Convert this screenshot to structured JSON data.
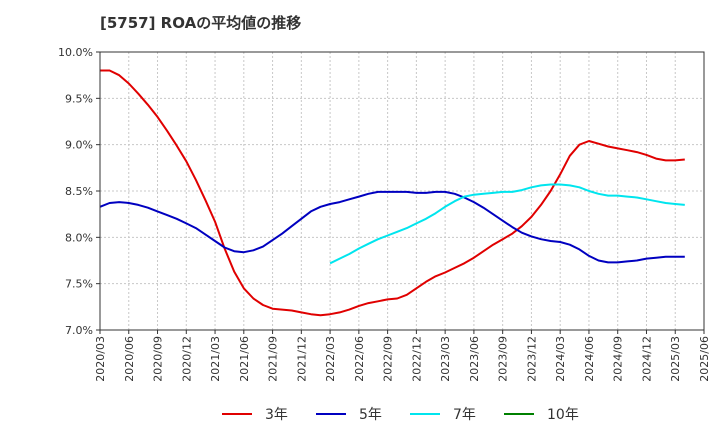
{
  "chart_data": {
    "type": "line",
    "title": "[5757]  ROAの平均値の推移",
    "xlabel": "",
    "ylabel": "",
    "ylim": [
      7.0,
      10.0
    ],
    "y_ticks": [
      "7.0%",
      "7.5%",
      "8.0%",
      "8.5%",
      "9.0%",
      "9.5%",
      "10.0%"
    ],
    "y_tick_values": [
      7.0,
      7.5,
      8.0,
      8.5,
      9.0,
      9.5,
      10.0
    ],
    "x_ticks": [
      "2020/03",
      "2020/06",
      "2020/09",
      "2020/12",
      "2021/03",
      "2021/06",
      "2021/09",
      "2021/12",
      "2022/03",
      "2022/06",
      "2022/09",
      "2022/12",
      "2023/03",
      "2023/06",
      "2023/09",
      "2023/12",
      "2024/03",
      "2024/06",
      "2024/09",
      "2024/12",
      "2025/03",
      "2025/06"
    ],
    "grid": true,
    "legend_position": "bottom",
    "series": [
      {
        "name": "3年",
        "color": "#e00000",
        "points": [
          [
            "2020/03",
            9.8
          ],
          [
            "2020/04",
            9.8
          ],
          [
            "2020/05",
            9.75
          ],
          [
            "2020/06",
            9.66
          ],
          [
            "2020/07",
            9.55
          ],
          [
            "2020/08",
            9.43
          ],
          [
            "2020/09",
            9.3
          ],
          [
            "2020/10",
            9.15
          ],
          [
            "2020/11",
            8.99
          ],
          [
            "2020/12",
            8.82
          ],
          [
            "2021/01",
            8.62
          ],
          [
            "2021/02",
            8.4
          ],
          [
            "2021/03",
            8.17
          ],
          [
            "2021/04",
            7.88
          ],
          [
            "2021/05",
            7.63
          ],
          [
            "2021/06",
            7.45
          ],
          [
            "2021/07",
            7.34
          ],
          [
            "2021/08",
            7.27
          ],
          [
            "2021/09",
            7.23
          ],
          [
            "2021/10",
            7.22
          ],
          [
            "2021/11",
            7.21
          ],
          [
            "2021/12",
            7.19
          ],
          [
            "2022/01",
            7.17
          ],
          [
            "2022/02",
            7.16
          ],
          [
            "2022/03",
            7.17
          ],
          [
            "2022/04",
            7.19
          ],
          [
            "2022/05",
            7.22
          ],
          [
            "2022/06",
            7.26
          ],
          [
            "2022/07",
            7.29
          ],
          [
            "2022/08",
            7.31
          ],
          [
            "2022/09",
            7.33
          ],
          [
            "2022/10",
            7.34
          ],
          [
            "2022/11",
            7.38
          ],
          [
            "2022/12",
            7.45
          ],
          [
            "2023/01",
            7.52
          ],
          [
            "2023/02",
            7.58
          ],
          [
            "2023/03",
            7.62
          ],
          [
            "2023/04",
            7.67
          ],
          [
            "2023/05",
            7.72
          ],
          [
            "2023/06",
            7.78
          ],
          [
            "2023/07",
            7.85
          ],
          [
            "2023/08",
            7.92
          ],
          [
            "2023/09",
            7.98
          ],
          [
            "2023/10",
            8.04
          ],
          [
            "2023/11",
            8.12
          ],
          [
            "2023/12",
            8.22
          ],
          [
            "2024/01",
            8.35
          ],
          [
            "2024/02",
            8.5
          ],
          [
            "2024/03",
            8.68
          ],
          [
            "2024/04",
            8.88
          ],
          [
            "2024/05",
            9.0
          ],
          [
            "2024/06",
            9.04
          ],
          [
            "2024/07",
            9.01
          ],
          [
            "2024/08",
            8.98
          ],
          [
            "2024/09",
            8.96
          ],
          [
            "2024/10",
            8.94
          ],
          [
            "2024/11",
            8.92
          ],
          [
            "2024/12",
            8.89
          ],
          [
            "2025/01",
            8.85
          ],
          [
            "2025/02",
            8.83
          ],
          [
            "2025/03",
            8.83
          ],
          [
            "2025/04",
            8.84
          ]
        ]
      },
      {
        "name": "5年",
        "color": "#0000c0",
        "points": [
          [
            "2020/03",
            8.33
          ],
          [
            "2020/04",
            8.37
          ],
          [
            "2020/05",
            8.38
          ],
          [
            "2020/06",
            8.37
          ],
          [
            "2020/07",
            8.35
          ],
          [
            "2020/08",
            8.32
          ],
          [
            "2020/09",
            8.28
          ],
          [
            "2020/10",
            8.24
          ],
          [
            "2020/11",
            8.2
          ],
          [
            "2020/12",
            8.15
          ],
          [
            "2021/01",
            8.1
          ],
          [
            "2021/02",
            8.03
          ],
          [
            "2021/03",
            7.96
          ],
          [
            "2021/04",
            7.89
          ],
          [
            "2021/05",
            7.85
          ],
          [
            "2021/06",
            7.84
          ],
          [
            "2021/07",
            7.86
          ],
          [
            "2021/08",
            7.9
          ],
          [
            "2021/09",
            7.97
          ],
          [
            "2021/10",
            8.04
          ],
          [
            "2021/11",
            8.12
          ],
          [
            "2021/12",
            8.2
          ],
          [
            "2022/01",
            8.28
          ],
          [
            "2022/02",
            8.33
          ],
          [
            "2022/03",
            8.36
          ],
          [
            "2022/04",
            8.38
          ],
          [
            "2022/05",
            8.41
          ],
          [
            "2022/06",
            8.44
          ],
          [
            "2022/07",
            8.47
          ],
          [
            "2022/08",
            8.49
          ],
          [
            "2022/09",
            8.49
          ],
          [
            "2022/10",
            8.49
          ],
          [
            "2022/11",
            8.49
          ],
          [
            "2022/12",
            8.48
          ],
          [
            "2023/01",
            8.48
          ],
          [
            "2023/02",
            8.49
          ],
          [
            "2023/03",
            8.49
          ],
          [
            "2023/04",
            8.47
          ],
          [
            "2023/05",
            8.43
          ],
          [
            "2023/06",
            8.38
          ],
          [
            "2023/07",
            8.32
          ],
          [
            "2023/08",
            8.25
          ],
          [
            "2023/09",
            8.18
          ],
          [
            "2023/10",
            8.11
          ],
          [
            "2023/11",
            8.05
          ],
          [
            "2023/12",
            8.01
          ],
          [
            "2024/01",
            7.98
          ],
          [
            "2024/02",
            7.96
          ],
          [
            "2024/03",
            7.95
          ],
          [
            "2024/04",
            7.92
          ],
          [
            "2024/05",
            7.87
          ],
          [
            "2024/06",
            7.8
          ],
          [
            "2024/07",
            7.75
          ],
          [
            "2024/08",
            7.73
          ],
          [
            "2024/09",
            7.73
          ],
          [
            "2024/10",
            7.74
          ],
          [
            "2024/11",
            7.75
          ],
          [
            "2024/12",
            7.77
          ],
          [
            "2025/01",
            7.78
          ],
          [
            "2025/02",
            7.79
          ],
          [
            "2025/03",
            7.79
          ],
          [
            "2025/04",
            7.79
          ]
        ]
      },
      {
        "name": "7年",
        "color": "#00e5ee",
        "points": [
          [
            "2022/03",
            7.72
          ],
          [
            "2022/04",
            7.77
          ],
          [
            "2022/05",
            7.82
          ],
          [
            "2022/06",
            7.88
          ],
          [
            "2022/07",
            7.93
          ],
          [
            "2022/08",
            7.98
          ],
          [
            "2022/09",
            8.02
          ],
          [
            "2022/10",
            8.06
          ],
          [
            "2022/11",
            8.1
          ],
          [
            "2022/12",
            8.15
          ],
          [
            "2023/01",
            8.2
          ],
          [
            "2023/02",
            8.26
          ],
          [
            "2023/03",
            8.33
          ],
          [
            "2023/04",
            8.39
          ],
          [
            "2023/05",
            8.44
          ],
          [
            "2023/06",
            8.46
          ],
          [
            "2023/07",
            8.47
          ],
          [
            "2023/08",
            8.48
          ],
          [
            "2023/09",
            8.49
          ],
          [
            "2023/10",
            8.49
          ],
          [
            "2023/11",
            8.51
          ],
          [
            "2023/12",
            8.54
          ],
          [
            "2024/01",
            8.56
          ],
          [
            "2024/02",
            8.57
          ],
          [
            "2024/03",
            8.57
          ],
          [
            "2024/04",
            8.56
          ],
          [
            "2024/05",
            8.54
          ],
          [
            "2024/06",
            8.5
          ],
          [
            "2024/07",
            8.47
          ],
          [
            "2024/08",
            8.45
          ],
          [
            "2024/09",
            8.45
          ],
          [
            "2024/10",
            8.44
          ],
          [
            "2024/11",
            8.43
          ],
          [
            "2024/12",
            8.41
          ],
          [
            "2025/01",
            8.39
          ],
          [
            "2025/02",
            8.37
          ],
          [
            "2025/03",
            8.36
          ],
          [
            "2025/04",
            8.35
          ]
        ]
      },
      {
        "name": "10年",
        "color": "#008000",
        "points": []
      }
    ]
  }
}
